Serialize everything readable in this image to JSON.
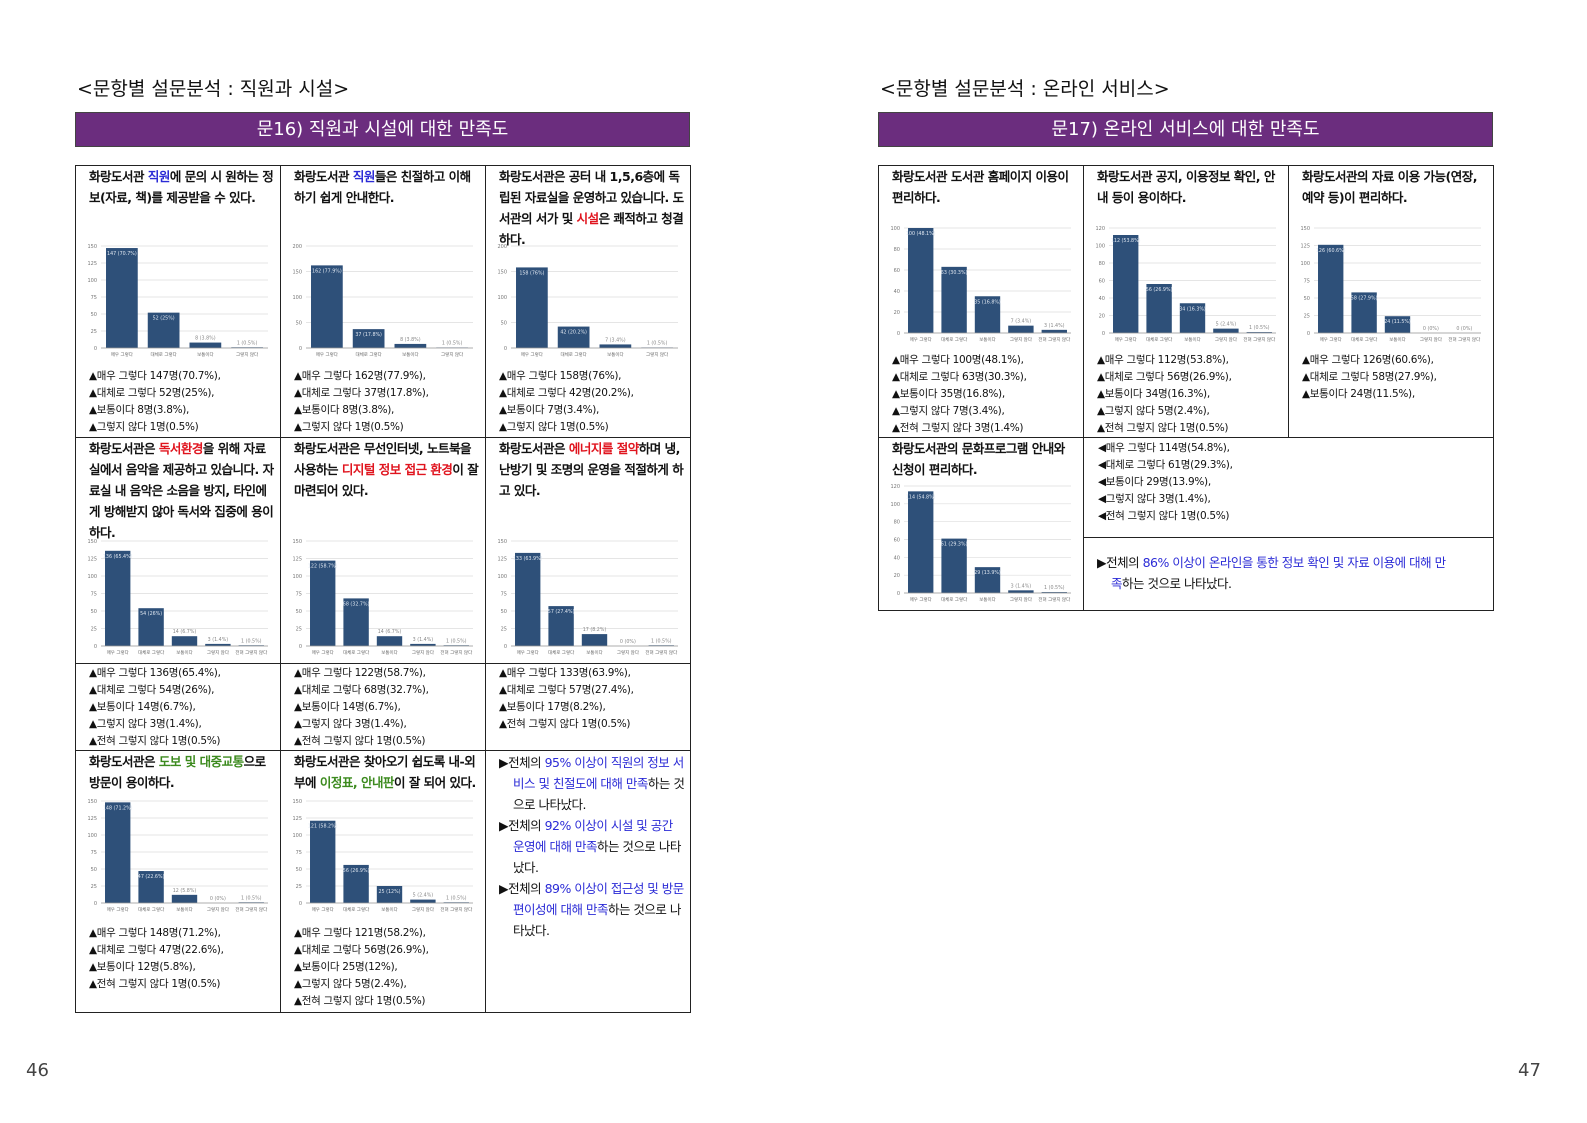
{
  "bar_color": "#2e5079",
  "highlight_colors": {
    "blue": "#2b2bd6",
    "red": "#e0141e",
    "green": "#3c8a1e"
  },
  "pages": [
    {
      "page_number": "46",
      "heading": "<문항별 설문분석 : 직원과 시설>",
      "banner": "문16) 직원과 시설에 대한 만족도",
      "items": [
        {
          "question": [
            {
              "t": "화랑도서관 "
            },
            {
              "t": "직원",
              "c": "blue"
            },
            {
              "t": "에 문의 시 원하는 정보(자료, 책)를 제공받을 수 있다."
            }
          ],
          "chart": {
            "categories": [
              "매우 그렇다",
              "대체로 그렇다",
              "보통이다",
              "그렇지 않다"
            ],
            "values": [
              147,
              52,
              8,
              1
            ],
            "value_labels": [
              "147 (70.7%)",
              "52 (25%)",
              "8 (3.8%)",
              "1 (0.5%)"
            ],
            "ylim": [
              0,
              150
            ],
            "yticks": [
              0,
              25,
              50,
              75,
              100,
              125,
              150
            ]
          },
          "stats": [
            "▲매우 그렇다 147명(70.7%),",
            "▲대체로 그렇다 52명(25%),",
            "▲보통이다 8명(3.8%),",
            "▲그렇지 않다 1명(0.5%)"
          ]
        },
        {
          "question": [
            {
              "t": "화랑도서관 "
            },
            {
              "t": "직원",
              "c": "blue"
            },
            {
              "t": "들은 친절하고 이해하기 쉽게 안내한다."
            }
          ],
          "chart": {
            "categories": [
              "매우 그렇다",
              "대체로 그렇다",
              "보통이다",
              "그렇지 않다"
            ],
            "values": [
              162,
              37,
              8,
              1
            ],
            "value_labels": [
              "162 (77.9%)",
              "37 (17.8%)",
              "8 (3.8%)",
              "1 (0.5%)"
            ],
            "ylim": [
              0,
              200
            ],
            "yticks": [
              0,
              50,
              100,
              150,
              200
            ]
          },
          "stats": [
            "▲매우 그렇다 162명(77.9%),",
            "▲대체로 그렇다 37명(17.8%),",
            "▲보통이다 8명(3.8%),",
            "▲그렇지 않다 1명(0.5%)"
          ]
        },
        {
          "question": [
            {
              "t": "화랑도서관은 공터 내 1,5,6층에 독립된 자료실을 운영하고 있습니다. 도서관의 서가 및 "
            },
            {
              "t": "시설",
              "c": "red"
            },
            {
              "t": "은 쾌적하고 청결하다."
            }
          ],
          "chart": {
            "categories": [
              "매우 그렇다",
              "대체로 그렇다",
              "보통이다",
              "그렇지 않다"
            ],
            "values": [
              158,
              42,
              7,
              1
            ],
            "value_labels": [
              "158 (76%)",
              "42 (20.2%)",
              "7 (3.4%)",
              "1 (0.5%)"
            ],
            "ylim": [
              0,
              200
            ],
            "yticks": [
              0,
              50,
              100,
              150,
              200
            ]
          },
          "stats": [
            "▲매우 그렇다 158명(76%),",
            "▲대체로 그렇다 42명(20.2%),",
            "▲보통이다 7명(3.4%),",
            "▲그렇지 않다 1명(0.5%)"
          ]
        },
        {
          "question": [
            {
              "t": "화랑도서관은 "
            },
            {
              "t": "독서환경",
              "c": "red"
            },
            {
              "t": "을 위해 자료실에서 음악을 제공하고 있습니다. 자료실 내 음악은 소음을 방지, 타인에게 방해받지 않아 독서와 집중에 용이하다."
            }
          ],
          "chart": {
            "categories": [
              "매우 그렇다",
              "대체로 그렇다",
              "보통이다",
              "그렇지 않다",
              "전혀 그렇지 않다"
            ],
            "values": [
              136,
              54,
              14,
              3,
              1
            ],
            "value_labels": [
              "136 (65.4%)",
              "54 (26%)",
              "14 (6.7%)",
              "3 (1.4%)",
              "1 (0.5%)"
            ],
            "ylim": [
              0,
              150
            ],
            "yticks": [
              0,
              25,
              50,
              75,
              100,
              125,
              150
            ]
          },
          "stats": [
            "▲매우 그렇다 136명(65.4%),",
            "▲대체로 그렇다 54명(26%),",
            "▲보통이다 14명(6.7%),",
            "▲그렇지 않다 3명(1.4%),",
            "▲전혀 그렇지 않다 1명(0.5%)"
          ]
        },
        {
          "question": [
            {
              "t": "화랑도서관은 무선인터넷, 노트북을 사용하는 "
            },
            {
              "t": "디지털 정보 접근 환경",
              "c": "red"
            },
            {
              "t": "이 잘 마련되어 있다."
            }
          ],
          "chart": {
            "categories": [
              "매우 그렇다",
              "대체로 그렇다",
              "보통이다",
              "그렇지 않다",
              "전혀 그렇지 않다"
            ],
            "values": [
              122,
              68,
              14,
              3,
              1
            ],
            "value_labels": [
              "122 (58.7%)",
              "68 (32.7%)",
              "14 (6.7%)",
              "3 (1.4%)",
              "1 (0.5%)"
            ],
            "ylim": [
              0,
              150
            ],
            "yticks": [
              0,
              25,
              50,
              75,
              100,
              125,
              150
            ]
          },
          "stats": [
            "▲매우 그렇다 122명(58.7%),",
            "▲대체로 그렇다 68명(32.7%),",
            "▲보통이다 14명(6.7%),",
            "▲그렇지 않다 3명(1.4%),",
            "▲전혀 그렇지 않다 1명(0.5%)"
          ]
        },
        {
          "question": [
            {
              "t": "화랑도서관은 "
            },
            {
              "t": "에너지를 절약",
              "c": "red"
            },
            {
              "t": "하며 냉,난방기 및 조명의 운영을 적절하게 하고 있다."
            }
          ],
          "chart": {
            "categories": [
              "매우 그렇다",
              "대체로 그렇다",
              "보통이다",
              "그렇지 않다",
              "전혀 그렇지 않다"
            ],
            "values": [
              133,
              57,
              17,
              0,
              1
            ],
            "value_labels": [
              "133 (63.9%)",
              "57 (27.4%)",
              "17 (8.2%)",
              "0 (0%)",
              "1 (0.5%)"
            ],
            "ylim": [
              0,
              150
            ],
            "yticks": [
              0,
              25,
              50,
              75,
              100,
              125,
              150
            ]
          },
          "stats": [
            "▲매우 그렇다 133명(63.9%),",
            "▲대체로 그렇다 57명(27.4%),",
            "▲보통이다 17명(8.2%),",
            "▲전혀 그렇지 않다 1명(0.5%)"
          ]
        },
        {
          "question": [
            {
              "t": "화랑도서관은 "
            },
            {
              "t": "도보 및 대중교통",
              "c": "green"
            },
            {
              "t": "으로 방문이 용이하다."
            }
          ],
          "chart": {
            "categories": [
              "매우 그렇다",
              "대체로 그렇다",
              "보통이다",
              "그렇지 않다",
              "전혀 그렇지 않다"
            ],
            "values": [
              148,
              47,
              12,
              0,
              1
            ],
            "value_labels": [
              "148 (71.2%)",
              "47 (22.6%)",
              "12 (5.8%)",
              "0 (0%)",
              "1 (0.5%)"
            ],
            "ylim": [
              0,
              150
            ],
            "yticks": [
              0,
              25,
              50,
              75,
              100,
              125,
              150
            ]
          },
          "stats": [
            "▲매우 그렇다 148명(71.2%),",
            "▲대체로 그렇다 47명(22.6%),",
            "▲보통이다 12명(5.8%),",
            "▲전혀 그렇지 않다 1명(0.5%)"
          ]
        },
        {
          "question": [
            {
              "t": "화랑도서관은 찾아오기 쉽도록 내-외부에 "
            },
            {
              "t": "이정표, 안내판",
              "c": "green"
            },
            {
              "t": "이 잘 되어 있다."
            }
          ],
          "chart": {
            "categories": [
              "매우 그렇다",
              "대체로 그렇다",
              "보통이다",
              "그렇지 않다",
              "전혀 그렇지 않다"
            ],
            "values": [
              121,
              56,
              25,
              5,
              1
            ],
            "value_labels": [
              "121 (58.2%)",
              "56 (26.9%)",
              "25 (12%)",
              "5 (2.4%)",
              "1 (0.5%)"
            ],
            "ylim": [
              0,
              150
            ],
            "yticks": [
              0,
              25,
              50,
              75,
              100,
              125,
              150
            ]
          },
          "stats": [
            "▲매우 그렇다 121명(58.2%),",
            "▲대체로 그렇다 56명(26.9%),",
            "▲보통이다 25명(12%),",
            "▲그렇지 않다 5명(2.4%),",
            "▲전혀 그렇지 않다 1명(0.5%)"
          ]
        }
      ],
      "summary": [
        [
          {
            "t": "▶전체의 "
          },
          {
            "t": "95% 이상이 직원의 정보 서비스 및 친절도에 대해 만족",
            "c": "blue"
          },
          {
            "t": "하는 것으로 나타났다."
          }
        ],
        [
          {
            "t": "▶전체의 "
          },
          {
            "t": "92% 이상이 시설 및 공간 운영에 대해 만족",
            "c": "blue"
          },
          {
            "t": "하는 것으로 나타났다."
          }
        ],
        [
          {
            "t": "▶전체의 "
          },
          {
            "t": "89% 이상이 접근성 및 방문 편이성에 대해 만족",
            "c": "blue"
          },
          {
            "t": "하는 것으로 나타났다."
          }
        ]
      ]
    },
    {
      "page_number": "47",
      "heading": "<문항별 설문분석 : 온라인 서비스>",
      "banner": "문17) 온라인 서비스에 대한 만족도",
      "items": [
        {
          "question": [
            {
              "t": "화랑도서관 도서관 홈페이지 이용이 편리하다."
            }
          ],
          "chart": {
            "categories": [
              "매우 그렇다",
              "대체로 그렇다",
              "보통이다",
              "그렇지 않다",
              "전혀 그렇지 않다"
            ],
            "values": [
              100,
              63,
              35,
              7,
              3
            ],
            "value_labels": [
              "100 (48.1%)",
              "63 (30.3%)",
              "35 (16.8%)",
              "7 (3.4%)",
              "3 (1.4%)"
            ],
            "ylim": [
              0,
              100
            ],
            "yticks": [
              0,
              20,
              40,
              60,
              80,
              100
            ]
          },
          "stats": [
            "▲매우 그렇다 100명(48.1%),",
            "▲대체로 그렇다 63명(30.3%),",
            "▲보통이다 35명(16.8%),",
            "▲그렇지 않다 7명(3.4%),",
            "▲전혀 그렇지 않다 3명(1.4%)"
          ]
        },
        {
          "question": [
            {
              "t": "화랑도서관 공지, 이용정보 확인, 안내 등이 용이하다."
            }
          ],
          "chart": {
            "categories": [
              "매우 그렇다",
              "대체로 그렇다",
              "보통이다",
              "그렇지 않다",
              "전혀 그렇지 않다"
            ],
            "values": [
              112,
              56,
              34,
              5,
              1
            ],
            "value_labels": [
              "112 (53.8%)",
              "56 (26.9%)",
              "34 (16.3%)",
              "5 (2.4%)",
              "1 (0.5%)"
            ],
            "ylim": [
              0,
              120
            ],
            "yticks": [
              0,
              20,
              40,
              60,
              80,
              100,
              120
            ]
          },
          "stats": [
            "▲매우 그렇다 112명(53.8%),",
            "▲대체로 그렇다 56명(26.9%),",
            "▲보통이다 34명(16.3%),",
            "▲그렇지 않다 5명(2.4%),",
            "▲전혀 그렇지 않다 1명(0.5%)"
          ]
        },
        {
          "question": [
            {
              "t": "화랑도서관의 자료 이용 가능(연장, 예약 등)이 편리하다."
            }
          ],
          "chart": {
            "categories": [
              "매우 그렇다",
              "대체로 그렇다",
              "보통이다",
              "그렇지 않다",
              "전혀 그렇지 않다"
            ],
            "values": [
              126,
              58,
              24,
              0,
              0
            ],
            "value_labels": [
              "126 (60.6%)",
              "58 (27.9%)",
              "24 (11.5%)",
              "0 (0%)",
              "0 (0%)"
            ],
            "ylim": [
              0,
              150
            ],
            "yticks": [
              0,
              25,
              50,
              75,
              100,
              125,
              150
            ]
          },
          "stats": [
            "▲매우 그렇다 126명(60.6%),",
            "▲대체로 그렇다 58명(27.9%),",
            "▲보통이다 24명(11.5%),"
          ]
        },
        {
          "question": [
            {
              "t": "화랑도서관의 문화프로그램 안내와 신청이 편리하다."
            }
          ],
          "chart": {
            "categories": [
              "매우 그렇다",
              "대체로 그렇다",
              "보통이다",
              "그렇지 않다",
              "전혀 그렇지 않다"
            ],
            "values": [
              114,
              61,
              29,
              3,
              1
            ],
            "value_labels": [
              "114 (54.8%)",
              "61 (29.3%)",
              "29 (13.9%)",
              "3 (1.4%)",
              "1 (0.5%)"
            ],
            "ylim": [
              0,
              120
            ],
            "yticks": [
              0,
              20,
              40,
              60,
              80,
              100,
              120
            ]
          },
          "stats": [
            "◀매우 그렇다 114명(54.8%),",
            "◀대체로 그렇다 61명(29.3%),",
            "◀보통이다 29명(13.9%),",
            "◀그렇지 않다 3명(1.4%),",
            "◀전혀 그렇지 않다 1명(0.5%)"
          ]
        }
      ],
      "summary": [
        [
          {
            "t": "▶전체의 "
          },
          {
            "t": "86% 이상이 온라인을 통한 정보 확인 및 자료 이용에 대해 만족",
            "c": "blue"
          },
          {
            "t": "하는 것으로 나타났다."
          }
        ]
      ]
    }
  ]
}
